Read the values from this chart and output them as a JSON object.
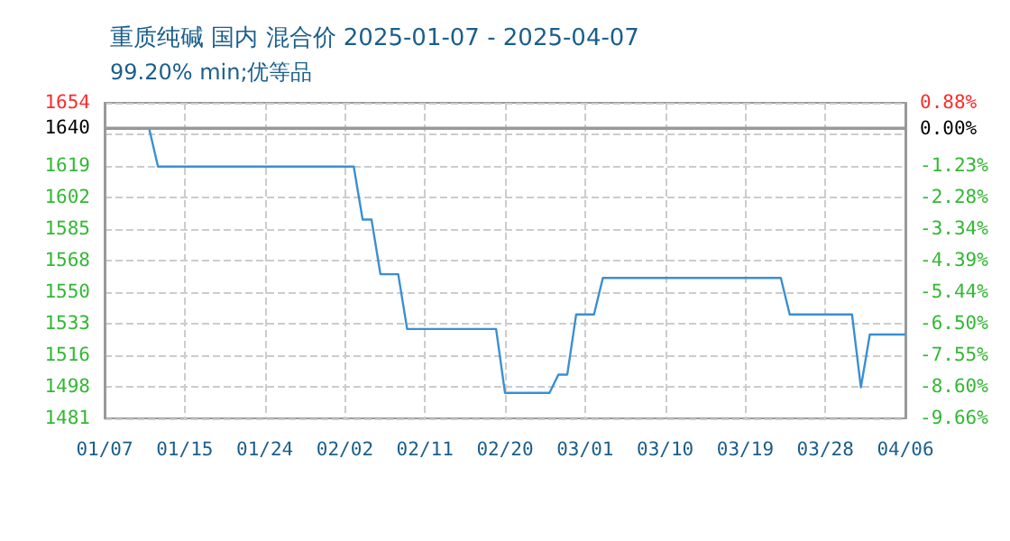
{
  "chart_data": {
    "type": "line",
    "title": "重质纯碱 国内 混合价 2025-01-07 - 2025-04-07",
    "subtitle": "99.20% min;优等品",
    "x": [
      "2025-01-07",
      "2025-01-12",
      "2025-01-13",
      "2025-02-04",
      "2025-02-05",
      "2025-02-06",
      "2025-02-07",
      "2025-02-09",
      "2025-02-10",
      "2025-02-20",
      "2025-02-21",
      "2025-02-26",
      "2025-02-27",
      "2025-02-28",
      "2025-03-01",
      "2025-03-03",
      "2025-03-04",
      "2025-03-24",
      "2025-03-25",
      "2025-04-01",
      "2025-04-02",
      "2025-04-03",
      "2025-04-07"
    ],
    "series": [
      {
        "color": "#3a8fd3",
        "values": [
          1640,
          1640,
          1619,
          1619,
          1590,
          1590,
          1560,
          1560,
          1530,
          1530,
          1495,
          1495,
          1505,
          1505,
          1538,
          1538,
          1558,
          1558,
          1538,
          1538,
          1498,
          1527,
          1527
        ]
      }
    ],
    "xlim": [
      "2025-01-07",
      "2025-04-07"
    ],
    "xticks": [
      {
        "value": "2025-01-07",
        "label": "01/07"
      },
      {
        "value": "2025-01-16",
        "label": "01/15"
      },
      {
        "value": "2025-01-25",
        "label": "01/24"
      },
      {
        "value": "2025-02-03",
        "label": "02/02"
      },
      {
        "value": "2025-02-12",
        "label": "02/11"
      },
      {
        "value": "2025-02-21",
        "label": "02/20"
      },
      {
        "value": "2025-03-02",
        "label": "03/01"
      },
      {
        "value": "2025-03-11",
        "label": "03/10"
      },
      {
        "value": "2025-03-20",
        "label": "03/19"
      },
      {
        "value": "2025-03-29",
        "label": "03/28"
      },
      {
        "value": "2025-04-07",
        "label": "04/06"
      }
    ],
    "ylim": [
      1481,
      1654
    ],
    "yticks": [
      {
        "value": 1481,
        "label": "1481"
      },
      {
        "value": 1498.3,
        "label": "1498"
      },
      {
        "value": 1515.6,
        "label": "1516"
      },
      {
        "value": 1532.9,
        "label": "1533"
      },
      {
        "value": 1550.2,
        "label": "1550"
      },
      {
        "value": 1567.5,
        "label": "1568"
      },
      {
        "value": 1584.8,
        "label": "1585"
      },
      {
        "value": 1602.1,
        "label": "1602"
      },
      {
        "value": 1619.4,
        "label": "1619"
      },
      {
        "value": 1636.7,
        "label": null
      },
      {
        "value": 1640,
        "label": "1640"
      },
      {
        "value": 1654,
        "label": "1654"
      }
    ],
    "y2lim": [
      -9.66,
      0.88
    ],
    "y2ticks": [
      {
        "value": -9.66,
        "label": "-9.66%"
      },
      {
        "value": -8.6,
        "label": "-8.60%"
      },
      {
        "value": -7.55,
        "label": "-7.55%"
      },
      {
        "value": -6.5,
        "label": "-6.50%"
      },
      {
        "value": -5.44,
        "label": "-5.44%"
      },
      {
        "value": -4.39,
        "label": "-4.39%"
      },
      {
        "value": -3.34,
        "label": "-3.34%"
      },
      {
        "value": -2.28,
        "label": "-2.28%"
      },
      {
        "value": -1.23,
        "label": "-1.23%"
      },
      {
        "value": -0.18,
        "label": null
      },
      {
        "value": 0,
        "label": "0.00%"
      },
      {
        "value": 0.88,
        "label": "0.88%"
      }
    ],
    "ref_lines": [
      {
        "axis": "y",
        "value": 1640,
        "color": "#999999",
        "line_style": "solid"
      }
    ],
    "grid": true,
    "marker": "none",
    "line_style": "solid"
  }
}
